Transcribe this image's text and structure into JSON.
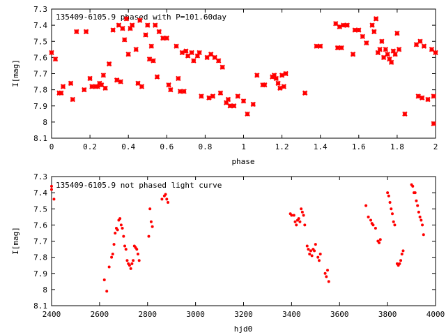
{
  "figure": {
    "background": "#ffffff",
    "point_color": "#ff0000"
  },
  "chart_data": [
    {
      "type": "scatter",
      "title": "135409-6105.9  phased with P=101.60day",
      "xlabel": "phase",
      "ylabel": "I[mag]",
      "xlim": [
        0,
        2
      ],
      "ylim": [
        7.3,
        8.1
      ],
      "y_inverted": true,
      "xticks": [
        "0",
        "0.2",
        "0.4",
        "0.6",
        "0.8",
        "1",
        "1.2",
        "1.4",
        "1.6",
        "1.8",
        "2"
      ],
      "yticks": [
        "7.3",
        "7.4",
        "7.5",
        "7.6",
        "7.7",
        "7.8",
        "7.9",
        "8",
        "8.1"
      ],
      "grid": false,
      "marker": "cross",
      "series": [
        {
          "points": [
            [
              0.0,
              7.57
            ],
            [
              0.02,
              7.61
            ],
            [
              0.04,
              7.82
            ],
            [
              0.05,
              7.82
            ],
            [
              0.06,
              7.78
            ],
            [
              0.1,
              7.76
            ],
            [
              0.11,
              7.86
            ],
            [
              0.13,
              7.44
            ],
            [
              0.17,
              7.8
            ],
            [
              0.18,
              7.44
            ],
            [
              0.2,
              7.73
            ],
            [
              0.21,
              7.78
            ],
            [
              0.23,
              7.78
            ],
            [
              0.24,
              7.78
            ],
            [
              0.25,
              7.76
            ],
            [
              0.26,
              7.77
            ],
            [
              0.27,
              7.71
            ],
            [
              0.28,
              7.79
            ],
            [
              0.3,
              7.64
            ],
            [
              0.32,
              7.43
            ],
            [
              0.34,
              7.74
            ],
            [
              0.35,
              7.4
            ],
            [
              0.36,
              7.75
            ],
            [
              0.37,
              7.42
            ],
            [
              0.38,
              7.49
            ],
            [
              0.39,
              7.36
            ],
            [
              0.4,
              7.58
            ],
            [
              0.41,
              7.42
            ],
            [
              0.42,
              7.4
            ],
            [
              0.44,
              7.55
            ],
            [
              0.45,
              7.76
            ],
            [
              0.46,
              7.37
            ],
            [
              0.47,
              7.78
            ],
            [
              0.49,
              7.46
            ],
            [
              0.5,
              7.4
            ],
            [
              0.51,
              7.61
            ],
            [
              0.52,
              7.53
            ],
            [
              0.53,
              7.62
            ],
            [
              0.54,
              7.4
            ],
            [
              0.55,
              7.72
            ],
            [
              0.56,
              7.44
            ],
            [
              0.58,
              7.48
            ],
            [
              0.6,
              7.48
            ],
            [
              0.61,
              7.77
            ],
            [
              0.62,
              7.8
            ],
            [
              0.65,
              7.53
            ],
            [
              0.66,
              7.73
            ],
            [
              0.67,
              7.81
            ],
            [
              0.68,
              7.57
            ],
            [
              0.69,
              7.81
            ],
            [
              0.7,
              7.56
            ],
            [
              0.71,
              7.59
            ],
            [
              0.73,
              7.57
            ],
            [
              0.74,
              7.62
            ],
            [
              0.76,
              7.59
            ],
            [
              0.77,
              7.57
            ],
            [
              0.78,
              7.84
            ],
            [
              0.81,
              7.6
            ],
            [
              0.82,
              7.85
            ],
            [
              0.83,
              7.58
            ],
            [
              0.84,
              7.84
            ],
            [
              0.85,
              7.6
            ],
            [
              0.87,
              7.62
            ],
            [
              0.88,
              7.82
            ],
            [
              0.89,
              7.66
            ],
            [
              0.91,
              7.88
            ],
            [
              0.92,
              7.86
            ],
            [
              0.93,
              7.9
            ],
            [
              0.95,
              7.9
            ],
            [
              0.97,
              7.84
            ],
            [
              1.0,
              7.87
            ],
            [
              1.02,
              7.95
            ],
            [
              1.05,
              7.89
            ],
            [
              1.07,
              7.71
            ],
            [
              1.1,
              7.77
            ],
            [
              1.11,
              7.77
            ],
            [
              1.15,
              7.72
            ],
            [
              1.16,
              7.71
            ],
            [
              1.17,
              7.73
            ],
            [
              1.18,
              7.76
            ],
            [
              1.19,
              7.79
            ],
            [
              1.2,
              7.71
            ],
            [
              1.21,
              7.78
            ],
            [
              1.22,
              7.7
            ],
            [
              1.32,
              7.82
            ],
            [
              1.38,
              7.53
            ],
            [
              1.4,
              7.53
            ],
            [
              1.48,
              7.39
            ],
            [
              1.49,
              7.54
            ],
            [
              1.5,
              7.41
            ],
            [
              1.51,
              7.54
            ],
            [
              1.52,
              7.4
            ],
            [
              1.54,
              7.4
            ],
            [
              1.57,
              7.58
            ],
            [
              1.58,
              7.43
            ],
            [
              1.6,
              7.43
            ],
            [
              1.62,
              7.47
            ],
            [
              1.64,
              7.51
            ],
            [
              1.67,
              7.4
            ],
            [
              1.68,
              7.44
            ],
            [
              1.69,
              7.36
            ],
            [
              1.7,
              7.57
            ],
            [
              1.71,
              7.55
            ],
            [
              1.72,
              7.5
            ],
            [
              1.73,
              7.6
            ],
            [
              1.74,
              7.55
            ],
            [
              1.75,
              7.58
            ],
            [
              1.76,
              7.61
            ],
            [
              1.77,
              7.63
            ],
            [
              1.78,
              7.56
            ],
            [
              1.79,
              7.58
            ],
            [
              1.8,
              7.45
            ],
            [
              1.81,
              7.55
            ],
            [
              1.84,
              7.95
            ],
            [
              1.9,
              7.52
            ],
            [
              1.91,
              7.84
            ],
            [
              1.92,
              7.5
            ],
            [
              1.93,
              7.85
            ],
            [
              1.94,
              7.53
            ],
            [
              1.96,
              7.86
            ],
            [
              1.98,
              7.55
            ],
            [
              1.99,
              7.84
            ],
            [
              1.99,
              8.01
            ],
            [
              2.0,
              7.57
            ]
          ]
        }
      ]
    },
    {
      "type": "scatter",
      "title": "135409-6105.9  not phased light curve",
      "xlabel": "hjd0",
      "ylabel": "I[mag]",
      "xlim": [
        2400,
        4000
      ],
      "ylim": [
        7.3,
        8.1
      ],
      "y_inverted": true,
      "xticks": [
        "2400",
        "2600",
        "2800",
        "3000",
        "3200",
        "3400",
        "3600",
        "3800",
        "4000"
      ],
      "yticks": [
        "7.3",
        "7.4",
        "7.5",
        "7.6",
        "7.7",
        "7.8",
        "7.9",
        "8",
        "8.1"
      ],
      "grid": false,
      "marker": "dot",
      "series": [
        {
          "points": [
            [
              2400,
              7.36
            ],
            [
              2400,
              7.38
            ],
            [
              2410,
              7.44
            ],
            [
              2620,
              7.94
            ],
            [
              2630,
              8.01
            ],
            [
              2640,
              7.86
            ],
            [
              2650,
              7.8
            ],
            [
              2655,
              7.78
            ],
            [
              2660,
              7.72
            ],
            [
              2665,
              7.65
            ],
            [
              2670,
              7.62
            ],
            [
              2675,
              7.63
            ],
            [
              2680,
              7.57
            ],
            [
              2685,
              7.56
            ],
            [
              2690,
              7.6
            ],
            [
              2695,
              7.62
            ],
            [
              2700,
              7.67
            ],
            [
              2705,
              7.73
            ],
            [
              2710,
              7.75
            ],
            [
              2715,
              7.82
            ],
            [
              2720,
              7.84
            ],
            [
              2725,
              7.85
            ],
            [
              2730,
              7.87
            ],
            [
              2735,
              7.84
            ],
            [
              2740,
              7.82
            ],
            [
              2745,
              7.73
            ],
            [
              2750,
              7.74
            ],
            [
              2755,
              7.75
            ],
            [
              2760,
              7.78
            ],
            [
              2765,
              7.82
            ],
            [
              2805,
              7.67
            ],
            [
              2810,
              7.5
            ],
            [
              2815,
              7.58
            ],
            [
              2820,
              7.61
            ],
            [
              2860,
              7.44
            ],
            [
              2870,
              7.42
            ],
            [
              2875,
              7.41
            ],
            [
              2880,
              7.44
            ],
            [
              2885,
              7.46
            ],
            [
              3395,
              7.53
            ],
            [
              3400,
              7.54
            ],
            [
              3410,
              7.54
            ],
            [
              3415,
              7.58
            ],
            [
              3420,
              7.6
            ],
            [
              3425,
              7.57
            ],
            [
              3430,
              7.56
            ],
            [
              3435,
              7.58
            ],
            [
              3440,
              7.5
            ],
            [
              3445,
              7.52
            ],
            [
              3450,
              7.54
            ],
            [
              3455,
              7.6
            ],
            [
              3465,
              7.73
            ],
            [
              3470,
              7.75
            ],
            [
              3475,
              7.78
            ],
            [
              3480,
              7.76
            ],
            [
              3485,
              7.79
            ],
            [
              3490,
              7.75
            ],
            [
              3495,
              7.76
            ],
            [
              3500,
              7.72
            ],
            [
              3510,
              7.8
            ],
            [
              3515,
              7.82
            ],
            [
              3520,
              7.78
            ],
            [
              3540,
              7.9
            ],
            [
              3545,
              7.92
            ],
            [
              3550,
              7.88
            ],
            [
              3555,
              7.95
            ],
            [
              3710,
              7.48
            ],
            [
              3720,
              7.55
            ],
            [
              3730,
              7.57
            ],
            [
              3735,
              7.59
            ],
            [
              3740,
              7.6
            ],
            [
              3750,
              7.62
            ],
            [
              3760,
              7.7
            ],
            [
              3765,
              7.71
            ],
            [
              3770,
              7.69
            ],
            [
              3800,
              7.4
            ],
            [
              3805,
              7.42
            ],
            [
              3810,
              7.46
            ],
            [
              3815,
              7.5
            ],
            [
              3820,
              7.53
            ],
            [
              3825,
              7.58
            ],
            [
              3830,
              7.6
            ],
            [
              3840,
              7.84
            ],
            [
              3845,
              7.85
            ],
            [
              3850,
              7.84
            ],
            [
              3855,
              7.82
            ],
            [
              3860,
              7.78
            ],
            [
              3865,
              7.76
            ],
            [
              3900,
              7.35
            ],
            [
              3905,
              7.36
            ],
            [
              3910,
              7.4
            ],
            [
              3915,
              7.4
            ],
            [
              3920,
              7.45
            ],
            [
              3925,
              7.48
            ],
            [
              3930,
              7.52
            ],
            [
              3935,
              7.55
            ],
            [
              3940,
              7.57
            ],
            [
              3945,
              7.6
            ],
            [
              3950,
              7.66
            ]
          ]
        }
      ]
    }
  ]
}
